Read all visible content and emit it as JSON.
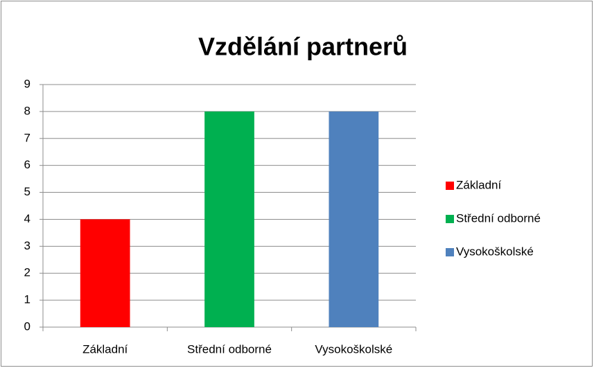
{
  "chart_data": {
    "type": "bar",
    "title": "Vzdělání partnerů",
    "categories": [
      "Základní",
      "Střední odborné",
      "Vysokoškolské"
    ],
    "values": [
      4,
      8,
      8
    ],
    "colors": [
      "#ff0000",
      "#00b050",
      "#4f81bd"
    ],
    "ylim": [
      0,
      9
    ],
    "yticks": [
      0,
      1,
      2,
      3,
      4,
      5,
      6,
      7,
      8,
      9
    ],
    "grid": true,
    "legend": "right"
  }
}
